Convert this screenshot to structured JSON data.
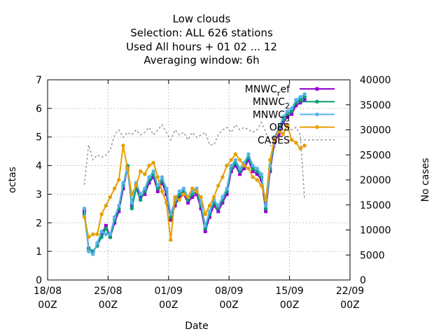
{
  "chart_data": {
    "type": "line",
    "title": [
      "Low clouds",
      "Selection: ALL    626 stations",
      "Used  All hours + 01 02 ... 12",
      "Averaging window:  6h"
    ],
    "xlabel": "Date",
    "ylabel": "octas",
    "y2label": "No cases",
    "xlim": [
      "2018-08-18 00:00",
      "2018-09-22 00:00"
    ],
    "x_ticks": [
      {
        "date": "2018-08-18 00:00",
        "label": [
          "18/08",
          "00Z"
        ]
      },
      {
        "date": "2018-08-25 00:00",
        "label": [
          "25/08",
          "00Z"
        ]
      },
      {
        "date": "2018-09-01 00:00",
        "label": [
          "01/09",
          "00Z"
        ]
      },
      {
        "date": "2018-09-08 00:00",
        "label": [
          "08/09",
          "00Z"
        ]
      },
      {
        "date": "2018-09-15 00:00",
        "label": [
          "15/09",
          "00Z"
        ]
      },
      {
        "date": "2018-09-22 00:00",
        "label": [
          "22/09",
          "00Z"
        ]
      }
    ],
    "ylim": [
      0,
      7
    ],
    "y_ticks": [
      "0",
      "1",
      "2",
      "3",
      "4",
      "5",
      "6",
      "7"
    ],
    "y2lim": [
      0,
      40000
    ],
    "y2_ticks": [
      "0",
      "5000",
      "10000",
      "15000",
      "20000",
      "25000",
      "30000",
      "35000",
      "40000"
    ],
    "grid": true,
    "legend_position": "top-right",
    "x": [
      "2018-08-22 06:00",
      "2018-08-22 18:00",
      "2018-08-23 06:00",
      "2018-08-23 18:00",
      "2018-08-24 06:00",
      "2018-08-24 18:00",
      "2018-08-25 06:00",
      "2018-08-25 18:00",
      "2018-08-26 06:00",
      "2018-08-26 18:00",
      "2018-08-27 06:00",
      "2018-08-27 18:00",
      "2018-08-28 06:00",
      "2018-08-28 18:00",
      "2018-08-29 06:00",
      "2018-08-29 18:00",
      "2018-08-30 06:00",
      "2018-08-30 18:00",
      "2018-08-31 06:00",
      "2018-08-31 18:00",
      "2018-09-01 06:00",
      "2018-09-01 18:00",
      "2018-09-02 06:00",
      "2018-09-02 18:00",
      "2018-09-03 06:00",
      "2018-09-03 18:00",
      "2018-09-04 06:00",
      "2018-09-04 18:00",
      "2018-09-05 06:00",
      "2018-09-05 18:00",
      "2018-09-06 06:00",
      "2018-09-06 18:00",
      "2018-09-07 06:00",
      "2018-09-07 18:00",
      "2018-09-08 06:00",
      "2018-09-08 18:00",
      "2018-09-09 06:00",
      "2018-09-09 18:00",
      "2018-09-10 06:00",
      "2018-09-10 18:00",
      "2018-09-11 06:00",
      "2018-09-11 18:00",
      "2018-09-12 06:00",
      "2018-09-12 18:00",
      "2018-09-13 06:00",
      "2018-09-13 18:00",
      "2018-09-14 06:00",
      "2018-09-14 18:00",
      "2018-09-15 06:00",
      "2018-09-15 18:00",
      "2018-09-16 06:00",
      "2018-09-16 18:00"
    ],
    "series": [
      {
        "name": "MNWC_ref",
        "color": "#9400d3",
        "marker": "square",
        "axis": "y1",
        "values": [
          2.4,
          1.1,
          1.0,
          1.2,
          1.6,
          1.9,
          1.5,
          2.0,
          2.4,
          3.2,
          3.9,
          2.6,
          3.3,
          2.9,
          3.0,
          3.4,
          3.6,
          3.1,
          3.4,
          3.0,
          2.1,
          2.6,
          2.9,
          3.0,
          2.7,
          2.9,
          3.0,
          2.5,
          1.7,
          2.2,
          2.6,
          2.4,
          2.7,
          3.0,
          3.8,
          4.0,
          3.7,
          3.9,
          4.2,
          3.8,
          3.7,
          3.5,
          2.4,
          3.8,
          4.8,
          5.1,
          5.5,
          5.7,
          5.8,
          6.1,
          6.2,
          6.3
        ]
      },
      {
        "name": "MNWC_2",
        "color": "#009e73",
        "marker": "circle",
        "axis": "y1",
        "values": [
          2.3,
          1.1,
          1.0,
          1.2,
          1.5,
          1.8,
          1.5,
          2.1,
          2.5,
          3.3,
          4.0,
          2.5,
          3.2,
          2.8,
          3.1,
          3.5,
          3.7,
          3.2,
          3.5,
          3.1,
          2.2,
          2.7,
          3.0,
          3.1,
          2.8,
          3.0,
          3.1,
          2.6,
          1.8,
          2.3,
          2.7,
          2.5,
          2.8,
          3.1,
          3.9,
          4.1,
          3.8,
          4.0,
          4.3,
          3.9,
          3.8,
          3.6,
          2.5,
          3.9,
          4.9,
          5.2,
          5.6,
          5.8,
          5.9,
          6.2,
          6.3,
          6.4
        ]
      },
      {
        "name": "MNWC_3",
        "color": "#56b4e9",
        "marker": "circle",
        "axis": "y1",
        "values": [
          2.5,
          1.0,
          0.9,
          1.3,
          1.7,
          1.6,
          1.6,
          2.2,
          2.6,
          3.4,
          3.8,
          2.7,
          3.4,
          3.0,
          3.2,
          3.6,
          3.8,
          3.3,
          3.6,
          3.2,
          2.3,
          2.8,
          3.1,
          3.2,
          2.9,
          3.1,
          3.2,
          2.7,
          1.9,
          2.4,
          2.8,
          2.6,
          2.9,
          3.2,
          4.0,
          4.2,
          3.9,
          4.1,
          4.4,
          4.0,
          3.9,
          3.7,
          2.6,
          4.0,
          5.0,
          5.3,
          5.7,
          5.9,
          6.0,
          6.3,
          6.4,
          6.5
        ]
      },
      {
        "name": "OBS",
        "color": "#e69f00",
        "marker": "circle",
        "axis": "y1",
        "values": [
          2.2,
          1.5,
          1.6,
          1.6,
          2.3,
          2.6,
          2.9,
          3.2,
          3.5,
          4.7,
          3.9,
          3.0,
          3.3,
          3.8,
          3.7,
          4.0,
          4.1,
          3.6,
          3.1,
          2.7,
          1.4,
          2.9,
          2.8,
          3.0,
          2.9,
          3.2,
          3.1,
          2.9,
          2.3,
          2.6,
          2.9,
          3.3,
          3.6,
          4.0,
          4.2,
          4.4,
          4.2,
          4.0,
          3.9,
          3.6,
          3.5,
          3.3,
          2.8,
          4.2,
          4.9,
          5.2,
          5.1,
          5.4,
          4.9,
          4.8,
          4.6,
          4.7
        ]
      },
      {
        "name": "CASES",
        "color": "#999999",
        "marker": "none",
        "dash": true,
        "axis": "y2",
        "values": [
          19000,
          27000,
          24000,
          25000,
          24500,
          25000,
          26000,
          29000,
          30000,
          28500,
          29500,
          29000,
          30000,
          29000,
          29500,
          30500,
          29000,
          30000,
          31000,
          29500,
          28000,
          30000,
          29000,
          29500,
          28000,
          29500,
          28500,
          29000,
          29500,
          27000,
          27000,
          29000,
          30000,
          30500,
          29500,
          31000,
          30000,
          30500,
          30000,
          29500,
          30000,
          31500,
          29500,
          27000,
          26000,
          30000,
          29500,
          31000,
          30000,
          30500,
          29000,
          16000
        ]
      }
    ]
  }
}
